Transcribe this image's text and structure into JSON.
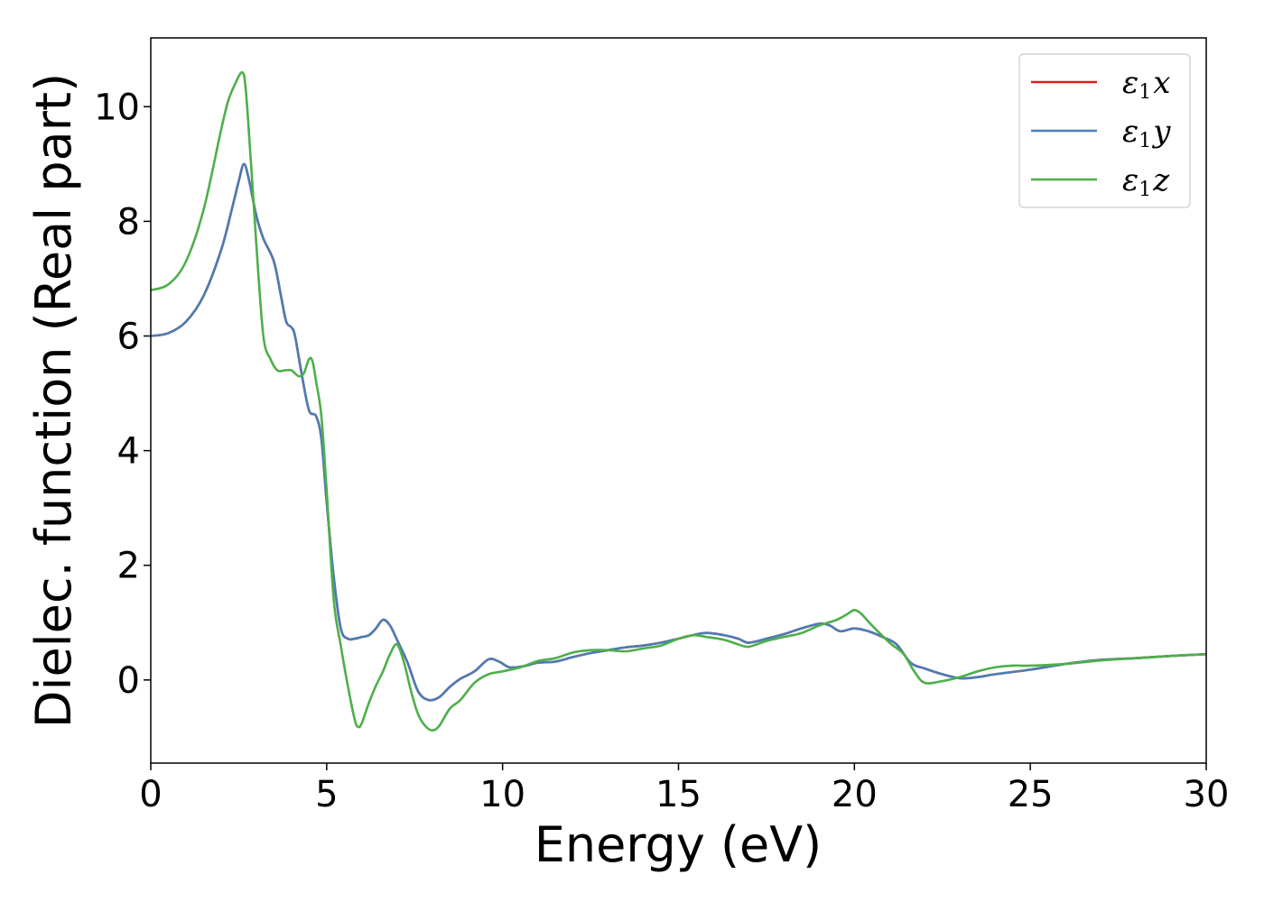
{
  "chart_data": {
    "type": "line",
    "title": "",
    "xlabel": "Energy (eV)",
    "ylabel": "Dielec. function (Real part)",
    "xlim": [
      0,
      30
    ],
    "ylim": [
      -1.45,
      11.2
    ],
    "xticks": [
      0,
      5,
      10,
      15,
      20,
      25,
      30
    ],
    "yticks": [
      0,
      2,
      4,
      6,
      8,
      10
    ],
    "grid": false,
    "legend_position": "top-right",
    "series": [
      {
        "name": "ε1x",
        "legend_base": "ε",
        "legend_sub": "1",
        "legend_var": "x",
        "color": "#e41a1c",
        "x": [
          0,
          0.5,
          1,
          1.5,
          2,
          2.3,
          2.5,
          2.65,
          2.8,
          3,
          3.2,
          3.5,
          3.7,
          3.85,
          4,
          4.1,
          4.3,
          4.5,
          4.7,
          4.85,
          5,
          5.2,
          5.4,
          5.6,
          5.8,
          6,
          6.2,
          6.4,
          6.6,
          6.8,
          7,
          7.3,
          7.6,
          7.9,
          8.2,
          8.5,
          8.8,
          9.2,
          9.6,
          9.9,
          10.2,
          10.6,
          11,
          11.5,
          12,
          12.5,
          13,
          13.5,
          14,
          14.5,
          15,
          15.4,
          15.8,
          16.3,
          16.7,
          17,
          17.5,
          18,
          18.5,
          19,
          19.3,
          19.6,
          20,
          20.4,
          20.8,
          21.2,
          21.6,
          22,
          22.5,
          23,
          23.5,
          24,
          25,
          26,
          27,
          28,
          29,
          30
        ],
        "values": [
          6.0,
          6.05,
          6.25,
          6.7,
          7.5,
          8.2,
          8.7,
          9.0,
          8.7,
          8.1,
          7.7,
          7.3,
          6.7,
          6.25,
          6.15,
          6.0,
          5.3,
          4.7,
          4.6,
          4.2,
          3.1,
          1.8,
          0.9,
          0.72,
          0.72,
          0.75,
          0.78,
          0.9,
          1.05,
          0.95,
          0.7,
          0.3,
          -0.2,
          -0.35,
          -0.3,
          -0.12,
          0.02,
          0.15,
          0.36,
          0.32,
          0.22,
          0.24,
          0.3,
          0.32,
          0.4,
          0.47,
          0.52,
          0.57,
          0.6,
          0.65,
          0.72,
          0.78,
          0.82,
          0.78,
          0.72,
          0.65,
          0.72,
          0.8,
          0.9,
          0.98,
          0.95,
          0.85,
          0.9,
          0.85,
          0.75,
          0.62,
          0.3,
          0.2,
          0.1,
          0.03,
          0.05,
          0.1,
          0.18,
          0.28,
          0.35,
          0.38,
          0.42,
          0.45
        ]
      },
      {
        "name": "ε1y",
        "legend_base": "ε",
        "legend_sub": "1",
        "legend_var": "y",
        "color": "#4a7db5",
        "x": [
          0,
          0.5,
          1,
          1.5,
          2,
          2.3,
          2.5,
          2.65,
          2.8,
          3,
          3.2,
          3.5,
          3.7,
          3.85,
          4,
          4.1,
          4.3,
          4.5,
          4.7,
          4.85,
          5,
          5.2,
          5.4,
          5.6,
          5.8,
          6,
          6.2,
          6.4,
          6.6,
          6.8,
          7,
          7.3,
          7.6,
          7.9,
          8.2,
          8.5,
          8.8,
          9.2,
          9.6,
          9.9,
          10.2,
          10.6,
          11,
          11.5,
          12,
          12.5,
          13,
          13.5,
          14,
          14.5,
          15,
          15.4,
          15.8,
          16.3,
          16.7,
          17,
          17.5,
          18,
          18.5,
          19,
          19.3,
          19.6,
          20,
          20.4,
          20.8,
          21.2,
          21.6,
          22,
          22.5,
          23,
          23.5,
          24,
          25,
          26,
          27,
          28,
          29,
          30
        ],
        "values": [
          6.0,
          6.05,
          6.25,
          6.7,
          7.5,
          8.2,
          8.7,
          9.0,
          8.7,
          8.1,
          7.7,
          7.3,
          6.7,
          6.25,
          6.15,
          6.0,
          5.3,
          4.7,
          4.6,
          4.2,
          3.1,
          1.8,
          0.9,
          0.72,
          0.72,
          0.75,
          0.78,
          0.9,
          1.05,
          0.95,
          0.7,
          0.3,
          -0.2,
          -0.35,
          -0.3,
          -0.12,
          0.02,
          0.15,
          0.36,
          0.32,
          0.22,
          0.24,
          0.3,
          0.32,
          0.4,
          0.47,
          0.52,
          0.57,
          0.6,
          0.65,
          0.72,
          0.78,
          0.82,
          0.78,
          0.72,
          0.65,
          0.72,
          0.8,
          0.9,
          0.98,
          0.95,
          0.85,
          0.9,
          0.85,
          0.75,
          0.62,
          0.3,
          0.2,
          0.1,
          0.03,
          0.05,
          0.1,
          0.18,
          0.28,
          0.35,
          0.38,
          0.42,
          0.45
        ]
      },
      {
        "name": "ε1z",
        "legend_base": "ε",
        "legend_sub": "1",
        "legend_var": "z",
        "color": "#4daf4a",
        "x": [
          0,
          0.5,
          1,
          1.5,
          2,
          2.2,
          2.4,
          2.6,
          2.7,
          2.85,
          3,
          3.2,
          3.4,
          3.6,
          3.8,
          4,
          4.2,
          4.35,
          4.5,
          4.6,
          4.7,
          4.85,
          5,
          5.2,
          5.4,
          5.6,
          5.8,
          5.9,
          6,
          6.2,
          6.4,
          6.6,
          6.8,
          7,
          7.2,
          7.4,
          7.6,
          7.8,
          8,
          8.2,
          8.5,
          8.8,
          9.2,
          9.6,
          10,
          10.5,
          11,
          11.5,
          12,
          12.5,
          13,
          13.5,
          14,
          14.5,
          15,
          15.4,
          15.8,
          16.3,
          16.7,
          17,
          17.5,
          18,
          18.5,
          19,
          19.5,
          19.8,
          20,
          20.2,
          20.5,
          21,
          21.4,
          21.7,
          22,
          22.5,
          23,
          23.5,
          24,
          24.5,
          25,
          26,
          27,
          28,
          29,
          30
        ],
        "values": [
          6.8,
          6.9,
          7.3,
          8.2,
          9.6,
          10.1,
          10.4,
          10.6,
          10.3,
          9.0,
          7.6,
          6.0,
          5.6,
          5.4,
          5.4,
          5.4,
          5.3,
          5.35,
          5.6,
          5.55,
          5.2,
          4.6,
          3.3,
          1.4,
          0.6,
          -0.1,
          -0.7,
          -0.82,
          -0.75,
          -0.4,
          -0.1,
          0.15,
          0.45,
          0.62,
          0.3,
          -0.2,
          -0.6,
          -0.8,
          -0.88,
          -0.8,
          -0.5,
          -0.35,
          -0.05,
          0.1,
          0.15,
          0.22,
          0.33,
          0.38,
          0.48,
          0.52,
          0.52,
          0.5,
          0.55,
          0.6,
          0.72,
          0.78,
          0.75,
          0.7,
          0.62,
          0.58,
          0.68,
          0.75,
          0.82,
          0.95,
          1.05,
          1.15,
          1.22,
          1.15,
          0.95,
          0.65,
          0.45,
          0.15,
          -0.05,
          -0.02,
          0.05,
          0.15,
          0.22,
          0.25,
          0.25,
          0.28,
          0.34,
          0.38,
          0.42,
          0.45
        ]
      }
    ]
  }
}
